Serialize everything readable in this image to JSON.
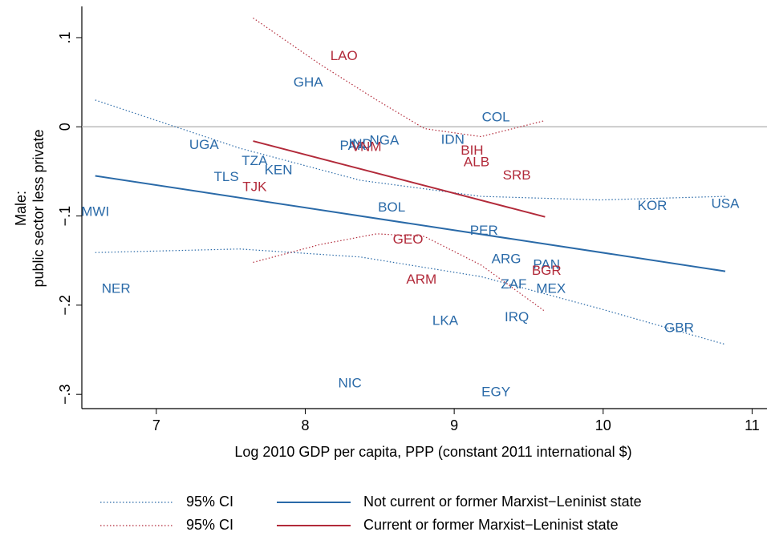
{
  "chart_data": {
    "type": "scatter",
    "xlabel": "Log 2010 GDP per capita, PPP (constant 2011 international $)",
    "ylabel": [
      "Male:",
      "public sector less private"
    ],
    "xlim": [
      6.5,
      11.1
    ],
    "ylim": [
      -0.316,
      0.135
    ],
    "xticks": [
      7,
      8,
      9,
      10,
      11
    ],
    "yticks": [
      {
        "value": -0.3,
        "label": "−.3"
      },
      {
        "value": -0.2,
        "label": "−.2"
      },
      {
        "value": -0.1,
        "label": "−.1"
      },
      0,
      {
        "value": 0.1,
        "label": ".1"
      }
    ],
    "reference_line": 0,
    "series": [
      {
        "name": "Not current or former Marxist−Leninist state",
        "color": "#2a6aa8",
        "labels": [
          "GHA",
          "COL",
          "UGA",
          "PAK",
          "IND",
          "NGA",
          "IDN",
          "TZA",
          "KEN",
          "TLS",
          "MWI",
          "BOL",
          "KOR",
          "USA",
          "PER",
          "ARG",
          "PAN",
          "ZAF",
          "MEX",
          "NER",
          "LKA",
          "IRQ",
          "GBR",
          "NIC",
          "EGY"
        ],
        "x": [
          8.02,
          9.28,
          7.32,
          8.32,
          8.37,
          8.53,
          8.99,
          7.66,
          7.82,
          7.47,
          6.59,
          8.58,
          10.33,
          10.82,
          9.2,
          9.35,
          9.62,
          9.4,
          9.65,
          6.73,
          8.94,
          9.42,
          10.51,
          8.3,
          9.28
        ],
        "values": [
          0.049,
          0.01,
          -0.021,
          -0.022,
          -0.02,
          -0.016,
          -0.015,
          -0.039,
          -0.049,
          -0.057,
          -0.096,
          -0.091,
          -0.089,
          -0.087,
          -0.117,
          -0.149,
          -0.155,
          -0.177,
          -0.182,
          -0.182,
          -0.218,
          -0.214,
          -0.226,
          -0.288,
          -0.298
        ],
        "fit": {
          "x": [
            6.59,
            10.82
          ],
          "values": [
            -0.055,
            -0.162
          ]
        },
        "ci": {
          "name": "95% CI",
          "x": [
            6.59,
            7.56,
            8.37,
            9.18,
            9.98,
            10.82
          ],
          "upper": [
            0.03,
            -0.024,
            -0.06,
            -0.078,
            -0.082,
            -0.078
          ],
          "lower": [
            -0.141,
            -0.137,
            -0.146,
            -0.168,
            -0.204,
            -0.244
          ]
        }
      },
      {
        "name": "Current or former Marxist−Leninist state",
        "color": "#b22a3a",
        "labels": [
          "LAO",
          "VNM",
          "BIH",
          "ALB",
          "SRB",
          "TJK",
          "GEO",
          "BGR",
          "ARM"
        ],
        "x": [
          8.26,
          8.41,
          9.12,
          9.15,
          9.42,
          7.66,
          8.69,
          9.62,
          8.78
        ],
        "values": [
          0.079,
          -0.023,
          -0.027,
          -0.04,
          -0.055,
          -0.068,
          -0.127,
          -0.162,
          -0.172
        ],
        "fit": {
          "x": [
            7.65,
            9.61
          ],
          "values": [
            -0.016,
            -0.101
          ]
        },
        "ci": {
          "name": "95% CI",
          "x": [
            7.65,
            8.1,
            8.48,
            8.8,
            9.18,
            9.61
          ],
          "upper": [
            0.122,
            0.07,
            0.03,
            -0.002,
            -0.011,
            0.007
          ],
          "lower": [
            -0.152,
            -0.132,
            -0.12,
            -0.123,
            -0.155,
            -0.207
          ]
        }
      }
    ]
  }
}
